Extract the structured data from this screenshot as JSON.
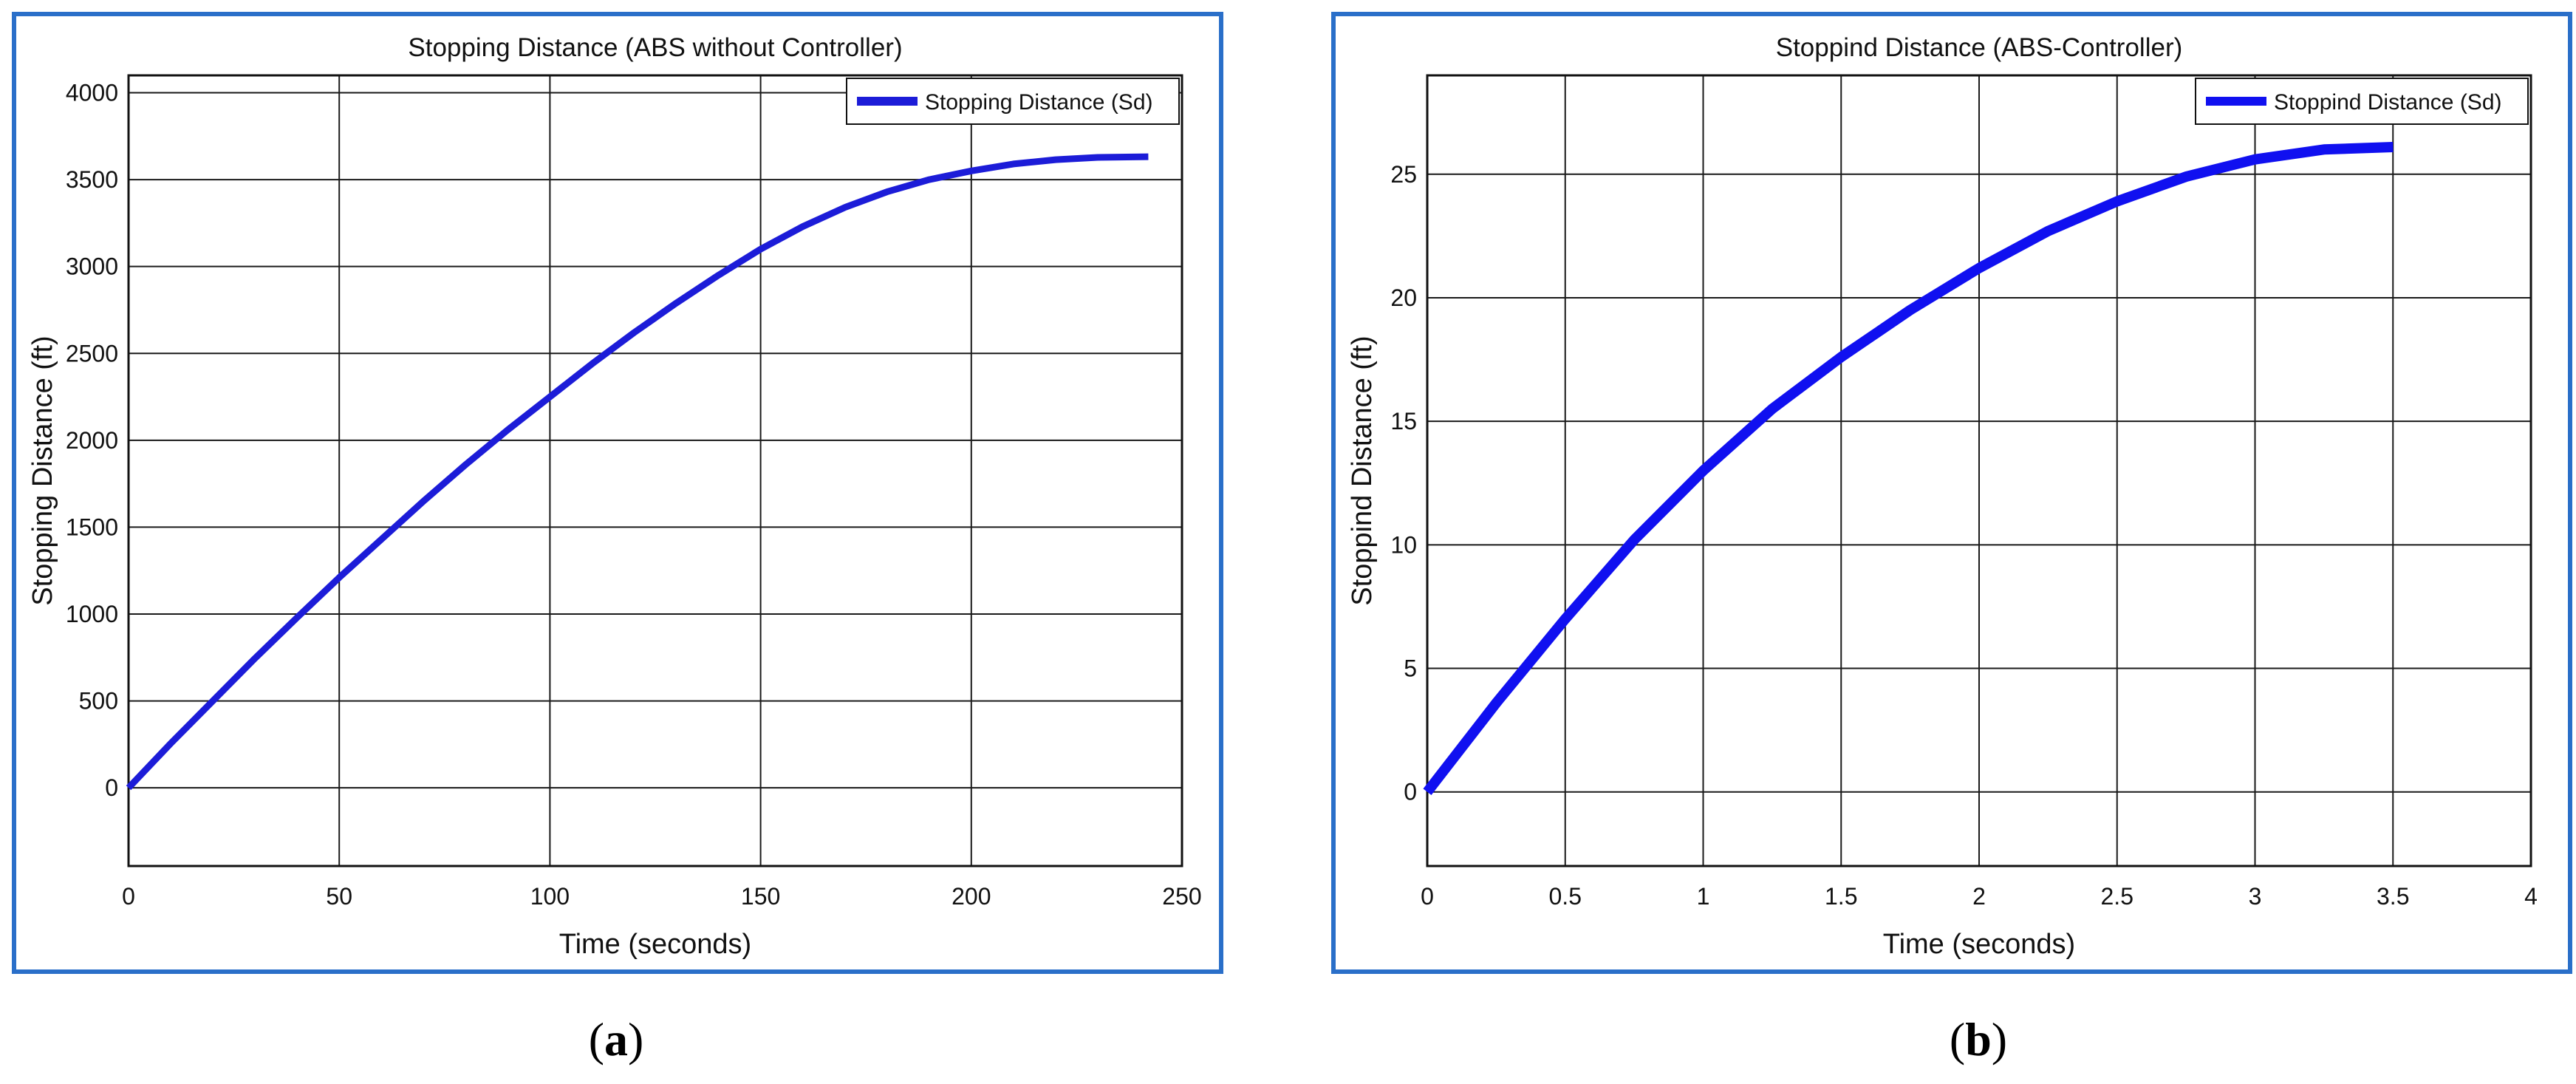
{
  "chart_data": [
    {
      "type": "line",
      "panel_label": "a",
      "title": "Stopping Distance (ABS without Controller)",
      "xlabel": "Time (seconds)",
      "ylabel": "Stopping Distance (ft)",
      "xlim": [
        0,
        250
      ],
      "ylim": [
        -450,
        4100
      ],
      "xticks": [
        0,
        50,
        100,
        150,
        200,
        250
      ],
      "yticks": [
        0,
        500,
        1000,
        1500,
        2000,
        2500,
        3000,
        3500,
        4000
      ],
      "grid": true,
      "legend_position": "top-right",
      "line_color": "#1c1cd8",
      "series": [
        {
          "name": "Stopping Distance (Sd)",
          "x": [
            0,
            10,
            20,
            30,
            40,
            50,
            60,
            70,
            80,
            90,
            100,
            110,
            120,
            130,
            140,
            150,
            160,
            170,
            180,
            190,
            200,
            210,
            220,
            230,
            242
          ],
          "y": [
            0,
            255,
            500,
            745,
            980,
            1210,
            1430,
            1650,
            1860,
            2060,
            2250,
            2440,
            2620,
            2790,
            2950,
            3100,
            3230,
            3340,
            3430,
            3500,
            3550,
            3590,
            3615,
            3628,
            3632
          ]
        }
      ]
    },
    {
      "type": "line",
      "panel_label": "b",
      "title": "Stoppind Distance (ABS-Controller)",
      "xlabel": "Time (seconds)",
      "ylabel": "Stoppind Distance (ft)",
      "xlim": [
        0,
        4
      ],
      "ylim": [
        -3,
        29
      ],
      "xticks": [
        0,
        0.5,
        1,
        1.5,
        2,
        2.5,
        3,
        3.5,
        4
      ],
      "yticks": [
        0,
        5,
        10,
        15,
        20,
        25
      ],
      "grid": true,
      "legend_position": "top-right",
      "line_color": "#1010f0",
      "series": [
        {
          "name": "Stoppind Distance (Sd)",
          "x": [
            0,
            0.25,
            0.5,
            0.75,
            1,
            1.25,
            1.5,
            1.75,
            2,
            2.25,
            2.5,
            2.75,
            3,
            3.25,
            3.5
          ],
          "y": [
            0,
            3.6,
            7,
            10.2,
            13,
            15.5,
            17.6,
            19.5,
            21.2,
            22.7,
            23.9,
            24.9,
            25.6,
            26,
            26.1
          ]
        }
      ]
    }
  ]
}
